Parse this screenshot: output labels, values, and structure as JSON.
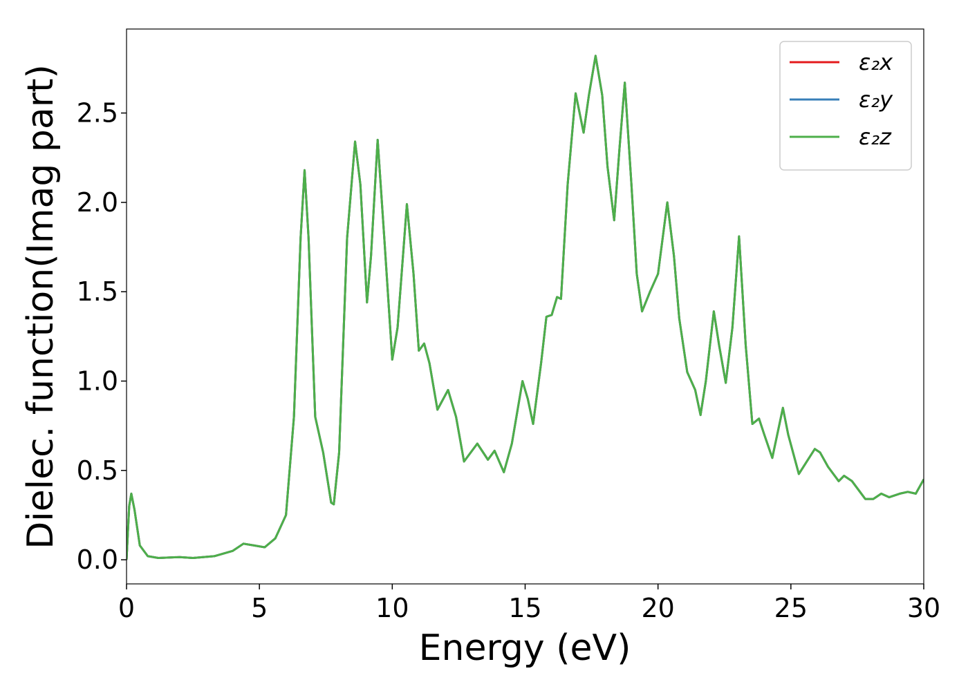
{
  "chart_data": {
    "type": "line",
    "xlabel": "Energy (eV)",
    "ylabel": "Dielec. function(Imag part)",
    "x": [
      0,
      0.1,
      0.18,
      0.3,
      0.5,
      0.8,
      1.2,
      2.0,
      2.5,
      3.3,
      4.0,
      4.4,
      4.8,
      5.2,
      5.6,
      6.0,
      6.3,
      6.55,
      6.7,
      6.85,
      7.1,
      7.4,
      7.7,
      7.8,
      8.0,
      8.3,
      8.6,
      8.8,
      9.05,
      9.2,
      9.45,
      9.7,
      10.0,
      10.2,
      10.55,
      10.8,
      11.0,
      11.2,
      11.4,
      11.7,
      12.1,
      12.4,
      12.7,
      13.2,
      13.6,
      13.85,
      14.2,
      14.5,
      14.9,
      15.1,
      15.3,
      15.6,
      15.8,
      16.0,
      16.2,
      16.35,
      16.6,
      16.9,
      17.2,
      17.4,
      17.65,
      17.9,
      18.1,
      18.35,
      18.55,
      18.75,
      19.0,
      19.2,
      19.4,
      19.7,
      20.0,
      20.35,
      20.6,
      20.8,
      21.1,
      21.4,
      21.6,
      21.8,
      22.1,
      22.3,
      22.55,
      22.8,
      23.05,
      23.3,
      23.55,
      23.8,
      24.0,
      24.3,
      24.7,
      24.9,
      25.3,
      25.6,
      25.9,
      26.1,
      26.4,
      26.8,
      27.0,
      27.3,
      27.6,
      27.8,
      28.1,
      28.4,
      28.7,
      29.1,
      29.4,
      29.7,
      30.0
    ],
    "series": [
      {
        "name": "ε₂x",
        "color": "#e41a1c",
        "values": [
          0,
          0.3,
          0.37,
          0.28,
          0.08,
          0.02,
          0.01,
          0.015,
          0.01,
          0.02,
          0.05,
          0.09,
          0.08,
          0.07,
          0.12,
          0.25,
          0.8,
          1.8,
          2.18,
          1.8,
          0.8,
          0.6,
          0.32,
          0.31,
          0.6,
          1.8,
          2.34,
          2.1,
          1.44,
          1.7,
          2.35,
          1.8,
          1.12,
          1.3,
          1.99,
          1.6,
          1.17,
          1.21,
          1.1,
          0.84,
          0.95,
          0.8,
          0.55,
          0.65,
          0.56,
          0.61,
          0.49,
          0.65,
          1.0,
          0.9,
          0.76,
          1.1,
          1.36,
          1.37,
          1.47,
          1.46,
          2.1,
          2.61,
          2.39,
          2.6,
          2.82,
          2.6,
          2.2,
          1.9,
          2.3,
          2.67,
          2.1,
          1.6,
          1.39,
          1.5,
          1.6,
          2.0,
          1.7,
          1.35,
          1.05,
          0.95,
          0.81,
          1.0,
          1.39,
          1.2,
          0.99,
          1.3,
          1.81,
          1.2,
          0.76,
          0.79,
          0.7,
          0.57,
          0.85,
          0.7,
          0.48,
          0.55,
          0.62,
          0.6,
          0.52,
          0.44,
          0.47,
          0.44,
          0.38,
          0.34,
          0.34,
          0.37,
          0.35,
          0.37,
          0.38,
          0.37,
          0.45
        ]
      },
      {
        "name": "ε₂y",
        "color": "#377eb8",
        "values": [
          0,
          0.3,
          0.37,
          0.28,
          0.08,
          0.02,
          0.01,
          0.015,
          0.01,
          0.02,
          0.05,
          0.09,
          0.08,
          0.07,
          0.12,
          0.25,
          0.8,
          1.8,
          2.18,
          1.8,
          0.8,
          0.6,
          0.32,
          0.31,
          0.6,
          1.8,
          2.34,
          2.1,
          1.44,
          1.7,
          2.35,
          1.8,
          1.12,
          1.3,
          1.99,
          1.6,
          1.17,
          1.21,
          1.1,
          0.84,
          0.95,
          0.8,
          0.55,
          0.65,
          0.56,
          0.61,
          0.49,
          0.65,
          1.0,
          0.9,
          0.76,
          1.1,
          1.36,
          1.37,
          1.47,
          1.46,
          2.1,
          2.61,
          2.39,
          2.6,
          2.82,
          2.6,
          2.2,
          1.9,
          2.3,
          2.67,
          2.1,
          1.6,
          1.39,
          1.5,
          1.6,
          2.0,
          1.7,
          1.35,
          1.05,
          0.95,
          0.81,
          1.0,
          1.39,
          1.2,
          0.99,
          1.3,
          1.81,
          1.2,
          0.76,
          0.79,
          0.7,
          0.57,
          0.85,
          0.7,
          0.48,
          0.55,
          0.62,
          0.6,
          0.52,
          0.44,
          0.47,
          0.44,
          0.38,
          0.34,
          0.34,
          0.37,
          0.35,
          0.37,
          0.38,
          0.37,
          0.45
        ]
      },
      {
        "name": "ε₂z",
        "color": "#4daf4a",
        "values": [
          0,
          0.3,
          0.37,
          0.28,
          0.08,
          0.02,
          0.01,
          0.015,
          0.01,
          0.02,
          0.05,
          0.09,
          0.08,
          0.07,
          0.12,
          0.25,
          0.8,
          1.8,
          2.18,
          1.8,
          0.8,
          0.6,
          0.32,
          0.31,
          0.6,
          1.8,
          2.34,
          2.1,
          1.44,
          1.7,
          2.35,
          1.8,
          1.12,
          1.3,
          1.99,
          1.6,
          1.17,
          1.21,
          1.1,
          0.84,
          0.95,
          0.8,
          0.55,
          0.65,
          0.56,
          0.61,
          0.49,
          0.65,
          1.0,
          0.9,
          0.76,
          1.1,
          1.36,
          1.37,
          1.47,
          1.46,
          2.1,
          2.61,
          2.39,
          2.6,
          2.82,
          2.6,
          2.2,
          1.9,
          2.3,
          2.67,
          2.1,
          1.6,
          1.39,
          1.5,
          1.6,
          2.0,
          1.7,
          1.35,
          1.05,
          0.95,
          0.81,
          1.0,
          1.39,
          1.2,
          0.99,
          1.3,
          1.81,
          1.2,
          0.76,
          0.79,
          0.7,
          0.57,
          0.85,
          0.7,
          0.48,
          0.55,
          0.62,
          0.6,
          0.52,
          0.44,
          0.47,
          0.44,
          0.38,
          0.34,
          0.34,
          0.37,
          0.35,
          0.37,
          0.38,
          0.37,
          0.45
        ]
      }
    ],
    "xlim": [
      0,
      30
    ],
    "xticks": [
      0,
      5,
      10,
      15,
      20,
      25,
      30
    ],
    "ylim": [
      -0.135,
      2.97
    ],
    "yticks": [
      {
        "value": 0,
        "label": "0.0"
      },
      0.5,
      {
        "value": 1,
        "label": "1.0"
      },
      1.5,
      {
        "value": 2,
        "label": "2.0"
      },
      2.5
    ],
    "legend": "upper right",
    "grid": false
  }
}
